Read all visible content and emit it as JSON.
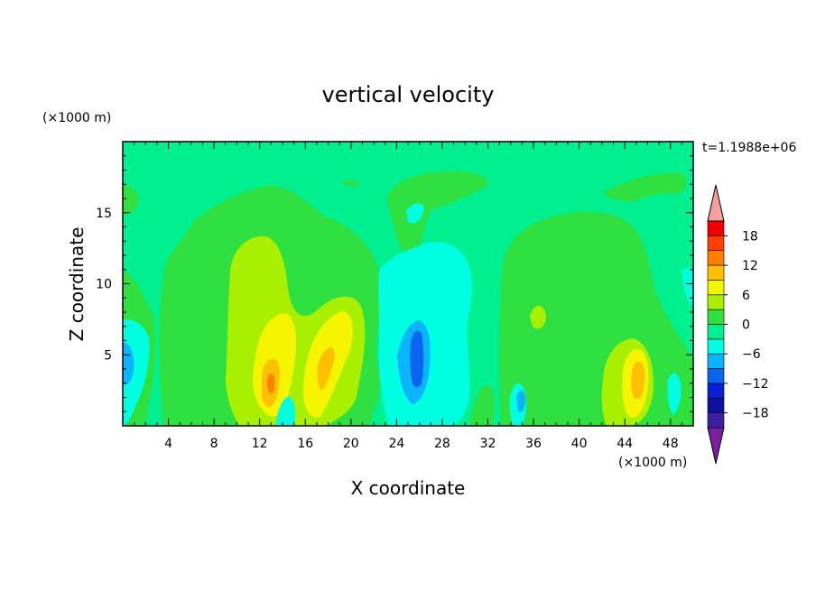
{
  "chart_data": {
    "type": "heatmap",
    "title": "vertical velocity",
    "xlabel": "X coordinate",
    "ylabel": "Z coordinate",
    "x_unit": "(×1000 m)",
    "y_unit": "(×1000 m)",
    "time_label": "t=1.1988e+06",
    "xlim": [
      0,
      50
    ],
    "ylim": [
      0,
      20
    ],
    "x_ticks": [
      4,
      8,
      12,
      16,
      20,
      24,
      28,
      32,
      36,
      40,
      44,
      48
    ],
    "y_ticks": [
      5,
      10,
      15
    ],
    "colorbar": {
      "levels": [
        -21,
        -18,
        -15,
        -12,
        -9,
        -6,
        -3,
        0,
        3,
        6,
        9,
        12,
        15,
        18,
        21
      ],
      "tick_labels": [
        "18",
        "12",
        "6",
        "0",
        "−6",
        "−12",
        "−18"
      ],
      "tick_values": [
        18,
        12,
        6,
        0,
        -6,
        -12,
        -18
      ],
      "colors": [
        "#7B1FA2",
        "#3F1FA0",
        "#1010A0",
        "#0A1ED8",
        "#0A64F0",
        "#0AB4FF",
        "#00FFE0",
        "#00F090",
        "#30E040",
        "#A8F000",
        "#F5F500",
        "#FFC000",
        "#FF8000",
        "#FF4000",
        "#F00000",
        "#F5A0A0"
      ]
    },
    "background_level_color": "#00F090",
    "features": [
      {
        "x": 1,
        "z": 17,
        "value": 1
      },
      {
        "x": 13.5,
        "z": 9,
        "value": 2
      },
      {
        "x": 13.5,
        "z": 5,
        "value": 5
      },
      {
        "x": 13,
        "z": 3.5,
        "value": 9
      },
      {
        "x": 17.5,
        "z": 4.5,
        "value": 6
      },
      {
        "x": 25.5,
        "z": 5,
        "value": -7
      },
      {
        "x": 25.5,
        "z": 5,
        "value": -10
      },
      {
        "x": 35,
        "z": 2,
        "value": -4
      },
      {
        "x": 45,
        "z": 3.5,
        "value": 8
      },
      {
        "x": 42,
        "z": 12,
        "value": 1
      }
    ]
  }
}
